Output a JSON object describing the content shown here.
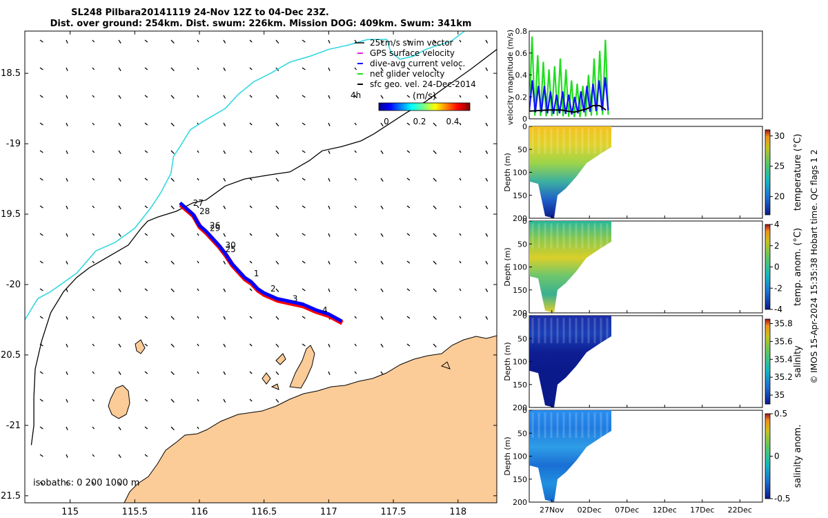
{
  "title": {
    "line1": "SL248 Pilbara20141119 24-Nov 12Z to 04-Dec 23Z.",
    "line2": "Dist. over ground: 254km. Dist. swum: 226km. Mission DOG: 409km. Swum: 341km"
  },
  "side_label": "© IMOS 15-Apr-2024 15:35:38 Hobart time. QC flags 1  2",
  "colors": {
    "land": "#fbcb98",
    "coast_outline": "#000000",
    "isobath_200": "#000000",
    "isobath_1000": "#33d8e0",
    "gps_velocity": "#e020e0",
    "dive_avg": "#1010ff",
    "net_velocity": "#22dd22",
    "track_red": "#ff0000",
    "track_blue": "#0000ff"
  },
  "chart_data": [
    {
      "type": "scatter",
      "name": "map",
      "xlim": [
        114.65,
        118.3
      ],
      "ylim": [
        -21.55,
        -18.2
      ],
      "xticks": [
        115,
        115.5,
        116,
        116.5,
        117,
        117.5,
        118
      ],
      "xtick_labels": [
        "115",
        "115.5",
        "116",
        "116.5",
        "117",
        "117.5",
        "118"
      ],
      "yticks": [
        -18.5,
        -19,
        -19.5,
        -20,
        -20.5,
        -21,
        -21.5
      ],
      "ytick_labels": [
        "18.5",
        "-19",
        "19.5",
        "-20",
        "20.5",
        "-21",
        "21.5"
      ],
      "legend": {
        "items": [
          "25cm/s swim vector",
          "GPS surface velocity",
          "dive-avg current veloc.",
          "net glider velocity",
          "sfc geo. vel. 24-Dec-2014"
        ],
        "placement": "top-right"
      },
      "colorbar": {
        "label": "(m/s)",
        "ticks": [
          "0",
          "0.2",
          "0.4"
        ],
        "range": [
          0,
          0.5
        ],
        "age_label": "4h"
      },
      "isobaths_label": "isobaths: 0   200   1000 m",
      "isobath_1000m": [
        [
          114.65,
          -20.25
        ],
        [
          114.75,
          -20.1
        ],
        [
          114.85,
          -20.05
        ],
        [
          115.05,
          -19.92
        ],
        [
          115.2,
          -19.76
        ],
        [
          115.35,
          -19.7
        ],
        [
          115.5,
          -19.6
        ],
        [
          115.62,
          -19.46
        ],
        [
          115.7,
          -19.35
        ],
        [
          115.78,
          -19.21
        ],
        [
          115.8,
          -19.09
        ],
        [
          115.85,
          -19.02
        ],
        [
          115.93,
          -18.9
        ],
        [
          116.05,
          -18.83
        ],
        [
          116.2,
          -18.75
        ],
        [
          116.3,
          -18.65
        ],
        [
          116.42,
          -18.56
        ],
        [
          116.55,
          -18.5
        ],
        [
          116.7,
          -18.42
        ],
        [
          116.85,
          -18.38
        ],
        [
          117.0,
          -18.33
        ],
        [
          117.15,
          -18.3
        ],
        [
          117.3,
          -18.26
        ],
        [
          117.45,
          -18.26
        ],
        [
          117.48,
          -18.35
        ],
        [
          117.55,
          -18.4
        ],
        [
          117.65,
          -18.38
        ],
        [
          117.75,
          -18.33
        ],
        [
          117.95,
          -18.27
        ],
        [
          118.05,
          -18.2
        ]
      ],
      "isobath_200m": [
        [
          114.7,
          -21.14
        ],
        [
          114.72,
          -21.0
        ],
        [
          114.72,
          -20.8
        ],
        [
          114.73,
          -20.6
        ],
        [
          114.78,
          -20.4
        ],
        [
          114.85,
          -20.2
        ],
        [
          114.95,
          -20.05
        ],
        [
          115.05,
          -19.95
        ],
        [
          115.15,
          -19.88
        ],
        [
          115.3,
          -19.8
        ],
        [
          115.45,
          -19.72
        ],
        [
          115.55,
          -19.6
        ],
        [
          115.6,
          -19.55
        ],
        [
          115.68,
          -19.52
        ],
        [
          115.82,
          -19.48
        ],
        [
          115.95,
          -19.42
        ],
        [
          116.05,
          -19.4
        ],
        [
          116.2,
          -19.3
        ],
        [
          116.35,
          -19.25
        ],
        [
          116.55,
          -19.22
        ],
        [
          116.7,
          -19.2
        ],
        [
          116.85,
          -19.12
        ],
        [
          116.95,
          -19.05
        ],
        [
          117.1,
          -19.02
        ],
        [
          117.25,
          -18.98
        ],
        [
          117.35,
          -18.93
        ],
        [
          117.45,
          -18.87
        ],
        [
          117.6,
          -18.78
        ],
        [
          117.75,
          -18.7
        ],
        [
          117.9,
          -18.6
        ],
        [
          118.1,
          -18.47
        ],
        [
          118.3,
          -18.33
        ]
      ],
      "track": [
        [
          115.85,
          -19.42
        ],
        [
          115.9,
          -19.46
        ],
        [
          115.95,
          -19.5
        ],
        [
          116.0,
          -19.58
        ],
        [
          116.05,
          -19.62
        ],
        [
          116.1,
          -19.67
        ],
        [
          116.15,
          -19.72
        ],
        [
          116.2,
          -19.78
        ],
        [
          116.25,
          -19.85
        ],
        [
          116.3,
          -19.9
        ],
        [
          116.35,
          -19.95
        ],
        [
          116.4,
          -19.98
        ],
        [
          116.45,
          -20.03
        ],
        [
          116.5,
          -20.06
        ],
        [
          116.55,
          -20.08
        ],
        [
          116.6,
          -20.1
        ],
        [
          116.7,
          -20.12
        ],
        [
          116.8,
          -20.14
        ],
        [
          116.9,
          -20.18
        ],
        [
          117.0,
          -20.21
        ],
        [
          117.1,
          -20.26
        ]
      ],
      "day_labels": [
        {
          "text": "27",
          "lon": 115.95,
          "lat": -19.44
        },
        {
          "text": "28",
          "lon": 116.0,
          "lat": -19.5
        },
        {
          "text": "26",
          "lon": 116.08,
          "lat": -19.6
        },
        {
          "text": "29",
          "lon": 116.08,
          "lat": -19.62
        },
        {
          "text": "30",
          "lon": 116.2,
          "lat": -19.74
        },
        {
          "text": "25",
          "lon": 116.2,
          "lat": -19.77
        },
        {
          "text": "1",
          "lon": 116.42,
          "lat": -19.94
        },
        {
          "text": "2",
          "lon": 116.55,
          "lat": -20.05
        },
        {
          "text": "3",
          "lon": 116.72,
          "lat": -20.12
        },
        {
          "text": "4",
          "lon": 116.95,
          "lat": -20.2
        }
      ]
    },
    {
      "type": "line",
      "name": "velocity",
      "ylabel": "velocity magnitude (m/s)",
      "ylim": [
        0,
        0.8
      ],
      "yticks": [
        "0",
        "0.2",
        "0.4",
        "0.6",
        "0.8"
      ],
      "xlim_days": [
        0,
        31
      ],
      "net_glider_peaks": [
        0.75,
        0.58,
        0.52,
        0.45,
        0.48,
        0.55,
        0.45,
        0.35,
        0.32,
        0.3,
        0.4,
        0.55,
        0.62,
        0.72
      ],
      "dive_avg_peaks": [
        0.35,
        0.3,
        0.3,
        0.25,
        0.22,
        0.25,
        0.22,
        0.2,
        0.25,
        0.3,
        0.32,
        0.35,
        0.38
      ],
      "sfc_geo": [
        [
          0,
          0.07
        ],
        [
          3,
          0.08
        ],
        [
          5,
          0.08
        ],
        [
          7,
          0.06
        ],
        [
          9,
          0.09
        ],
        [
          10,
          0.12
        ],
        [
          11,
          0.12
        ],
        [
          12,
          0.08
        ]
      ]
    },
    {
      "type": "heatmap",
      "name": "temperature",
      "ylabel": "Depth (m)",
      "yticks": [
        "0",
        "50",
        "100",
        "150",
        "200"
      ],
      "ylim": [
        0,
        200
      ],
      "colorbar_label": "temperature (°C)",
      "colorbar_ticks": [
        "30",
        "25",
        "20"
      ],
      "clim": [
        17,
        31
      ]
    },
    {
      "type": "heatmap",
      "name": "temp-anomaly",
      "ylabel": "Depth (m)",
      "yticks": [
        "0",
        "50",
        "100",
        "150",
        "200"
      ],
      "ylim": [
        0,
        200
      ],
      "colorbar_label": "temp. anom. (°C)",
      "colorbar_ticks": [
        "4",
        "2",
        "0",
        "-2",
        "-4"
      ],
      "clim": [
        -4,
        4
      ]
    },
    {
      "type": "heatmap",
      "name": "salinity",
      "ylabel": "Depth (m)",
      "yticks": [
        "0",
        "50",
        "100",
        "150",
        "200"
      ],
      "ylim": [
        0,
        200
      ],
      "colorbar_label": "salinity",
      "colorbar_ticks": [
        "35.8",
        "35.6",
        "35.4",
        "35.2",
        "35"
      ],
      "clim": [
        34.9,
        35.85
      ]
    },
    {
      "type": "heatmap",
      "name": "salinity-anomaly",
      "ylabel": "Depth (m)",
      "yticks": [
        "0",
        "50",
        "100",
        "150",
        "200"
      ],
      "ylim": [
        0,
        200
      ],
      "colorbar_label": "salinity anom.",
      "colorbar_ticks": [
        "0.5",
        "0",
        "-0.5"
      ],
      "clim": [
        -0.5,
        0.5
      ],
      "xtick_labels": [
        "27Nov",
        "02Dec",
        "07Dec",
        "12Dec",
        "17Dec",
        "22Dec"
      ]
    }
  ]
}
